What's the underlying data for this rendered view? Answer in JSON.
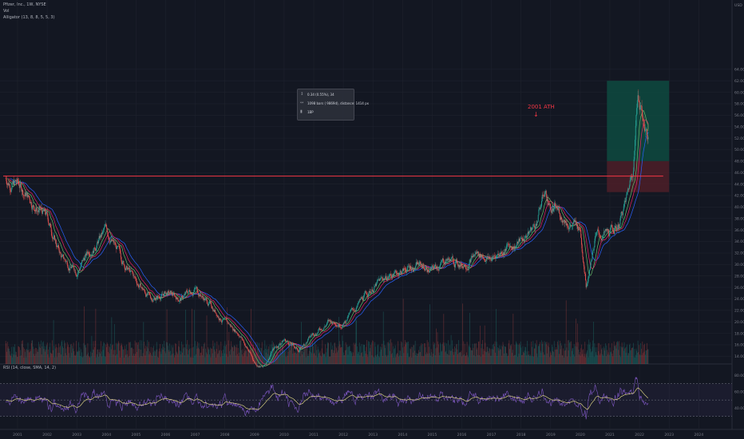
{
  "header": {
    "symbol_line": "Pfizer, Inc., 1W, NYSE",
    "volume_line": "Vol",
    "alligator_line": "Alligator (13, 8, 8, 5, 5, 3)"
  },
  "measure_tooltip": {
    "line1": "0.34 (0.55%), 34",
    "line2": "1098 bars ( 9869d), distance: 1414 px",
    "line3": "1BP"
  },
  "annotation": {
    "ath_label": "2001 ATH"
  },
  "rsi_legend": "RSI (14, close, SMA, 14, 2)",
  "colors": {
    "background": "#131722",
    "grid": "#1e222d",
    "up": "#26a69a",
    "down": "#ef5350",
    "ath_line": "#f23645",
    "jaw": "#2962ff",
    "teeth": "#e91e63",
    "lips": "#66bb6a",
    "rsi": "#7e57c2",
    "rsi_ma": "#f0e68c",
    "profit_zone": "#0e4a3f",
    "loss_zone": "#4a1e28"
  },
  "chart_data": [
    {
      "type": "candlestick",
      "title": "Pfizer, Inc., 1W, NYSE",
      "x_axis_ticks": [
        "2001",
        "2002",
        "2003",
        "2004",
        "2005",
        "2006",
        "2007",
        "2008",
        "2009",
        "2010",
        "2011",
        "2012",
        "2013",
        "2014",
        "2015",
        "2016",
        "2017",
        "2018",
        "2019",
        "2020",
        "2021",
        "2022",
        "2023",
        "2024"
      ],
      "y_axis_ticks": [
        "4.00",
        "6.00",
        "8.00",
        "10.00",
        "12.00",
        "14.00",
        "16.00",
        "18.00",
        "20.00",
        "22.00",
        "24.00",
        "26.00",
        "28.00",
        "30.00",
        "32.00",
        "34.00",
        "36.00",
        "38.00",
        "40.00",
        "42.00",
        "44.00",
        "46.00",
        "48.00",
        "50.00",
        "52.00",
        "54.00",
        "56.00",
        "58.00",
        "60.00",
        "62.00",
        "64.00"
      ],
      "y_top_label": "USD",
      "ylim": [
        4,
        64
      ],
      "price_path": {
        "x": [
          2000.6,
          2001.0,
          2001.5,
          2002.0,
          2002.5,
          2003.0,
          2003.5,
          2004.0,
          2004.5,
          2005.0,
          2005.5,
          2006.0,
          2006.5,
          2007.0,
          2007.5,
          2008.0,
          2008.5,
          2009.0,
          2009.3,
          2009.6,
          2010.0,
          2010.5,
          2011.0,
          2011.5,
          2012.0,
          2012.5,
          2013.0,
          2013.5,
          2014.0,
          2014.5,
          2015.0,
          2015.5,
          2016.0,
          2016.5,
          2017.0,
          2017.5,
          2018.0,
          2018.5,
          2018.8,
          2019.0,
          2019.5,
          2020.0,
          2020.2,
          2020.5,
          2021.0,
          2021.3,
          2021.6,
          2021.8,
          2021.95,
          2022.1,
          2022.3
        ],
        "y": [
          45,
          44,
          41,
          38,
          31,
          29,
          33,
          36,
          31,
          27,
          24,
          25,
          24,
          26,
          23,
          20,
          18,
          13,
          12,
          15,
          17,
          15,
          18,
          20,
          20,
          23,
          26,
          28,
          29,
          30,
          29,
          31,
          30,
          32,
          31,
          33,
          34,
          37,
          43,
          40,
          38,
          36,
          27,
          35,
          35,
          37,
          42,
          48,
          61,
          56,
          52
        ]
      },
      "ath_level": 45.4,
      "position_tool": {
        "x_from": 2020.9,
        "x_to": 2023.0,
        "entry": 48.0,
        "target": 62.0,
        "stop": 42.6
      },
      "volume_profile": "weekly volume bars at base of pane"
    },
    {
      "type": "line",
      "title": "RSI (14, close, SMA, 14, 2)",
      "y_axis_ticks": [
        "40.00",
        "60.00",
        "80.00"
      ],
      "levels": [
        30,
        50,
        70
      ],
      "series": [
        {
          "name": "RSI"
        },
        {
          "name": "RSI-based MA"
        }
      ]
    }
  ]
}
